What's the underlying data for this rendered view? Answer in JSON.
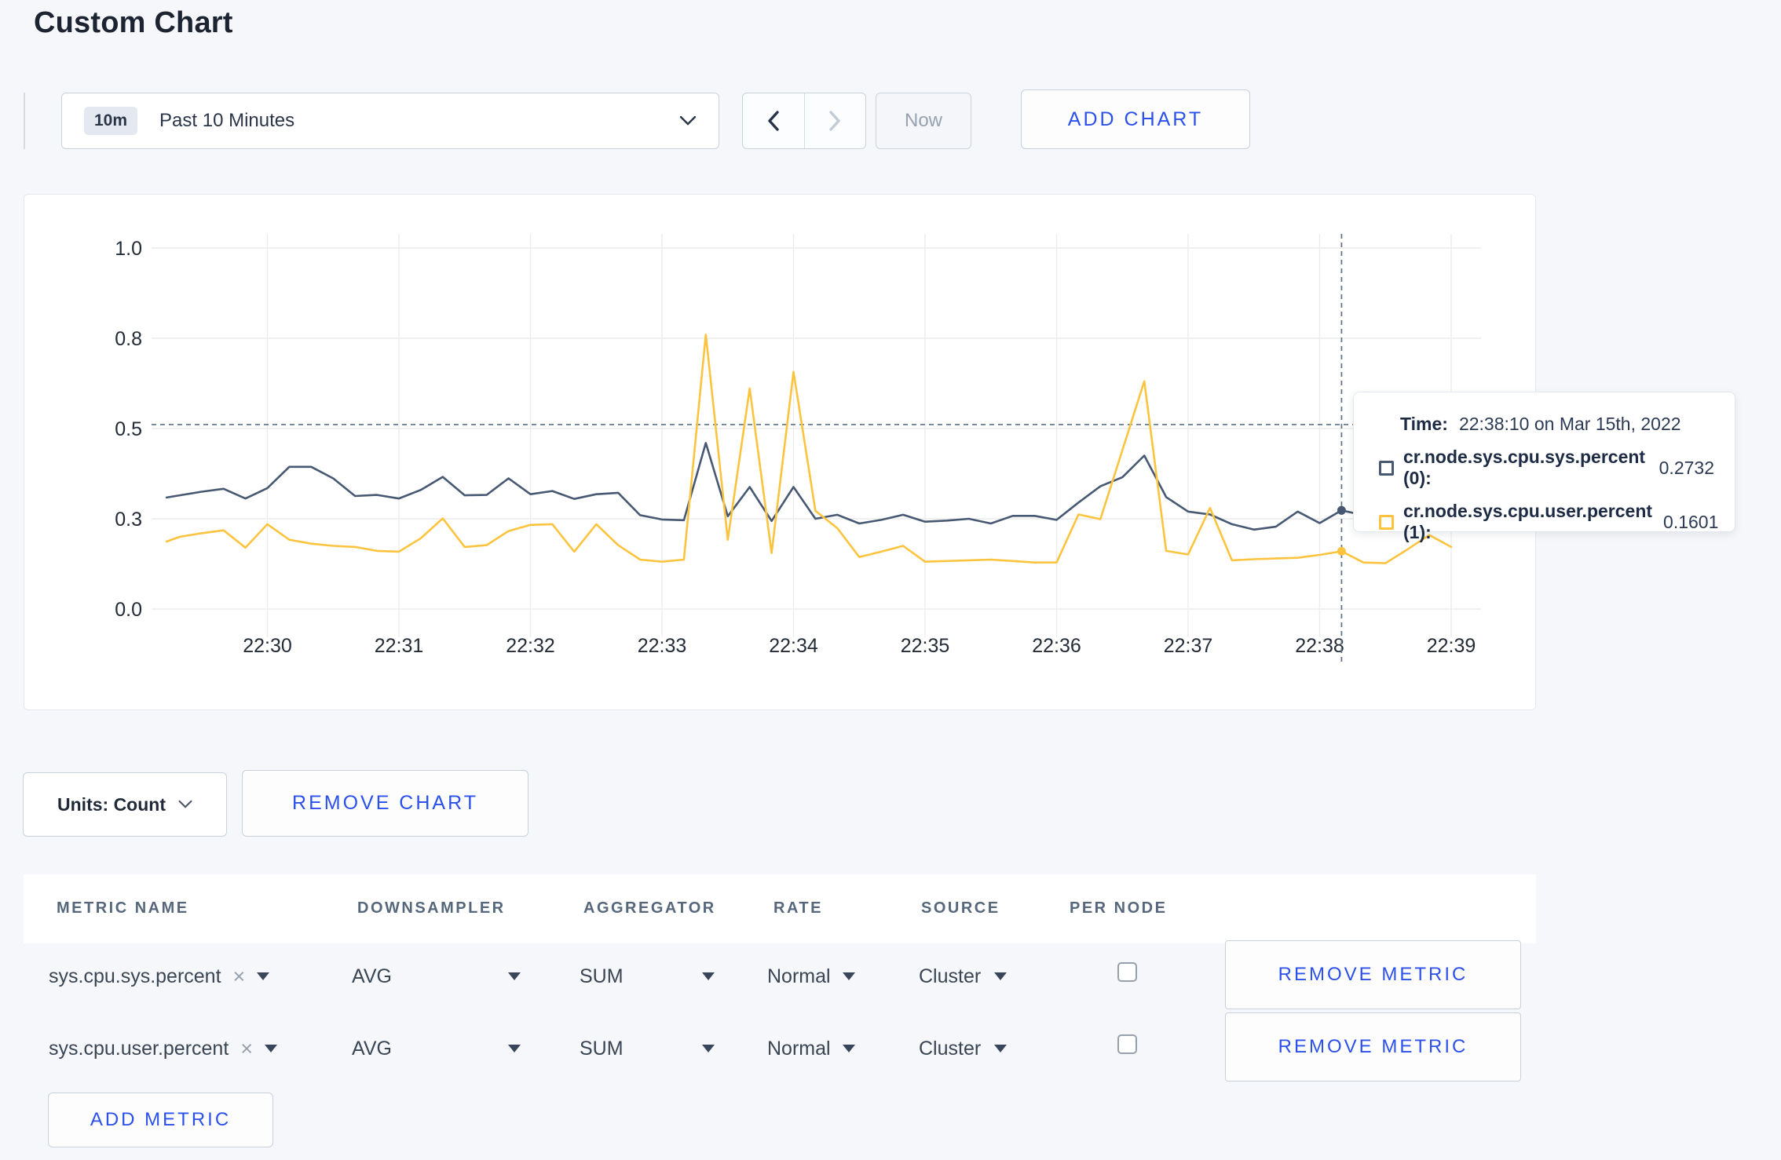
{
  "page": {
    "title": "Custom Chart",
    "background": "#f6f7fa"
  },
  "toolbar": {
    "time_window_badge": "10m",
    "time_window_label": "Past 10 Minutes",
    "now_label": "Now",
    "add_chart_label": "ADD CHART"
  },
  "tooltip": {
    "time_label": "Time:",
    "time_value": "22:38:10 on Mar 15th, 2022",
    "rows": [
      {
        "name": "cr.node.sys.cpu.sys.percent (0):",
        "value": "0.2732"
      },
      {
        "name": "cr.node.sys.cpu.user.percent (1):",
        "value": "0.1601"
      }
    ]
  },
  "chart_data": {
    "type": "line",
    "x_axis": {
      "ticks": [
        {
          "t": 0,
          "label": "22:30"
        },
        {
          "t": 60,
          "label": "22:31"
        },
        {
          "t": 120,
          "label": "22:32"
        },
        {
          "t": 180,
          "label": "22:33"
        },
        {
          "t": 240,
          "label": "22:34"
        },
        {
          "t": 300,
          "label": "22:35"
        },
        {
          "t": 360,
          "label": "22:36"
        },
        {
          "t": 420,
          "label": "22:37"
        },
        {
          "t": 480,
          "label": "22:38"
        },
        {
          "t": 540,
          "label": "22:39"
        }
      ],
      "domain_seconds_from_2230": [
        -46,
        553
      ]
    },
    "y_axis": {
      "range": [
        0,
        1
      ],
      "ticks": [
        {
          "v": 0,
          "label": "0.0"
        },
        {
          "v": 0.25,
          "label": "0.3"
        },
        {
          "v": 0.5,
          "label": "0.5"
        },
        {
          "v": 0.75,
          "label": "0.8"
        },
        {
          "v": 1,
          "label": "1.0"
        }
      ]
    },
    "crosshair": {
      "t": 490,
      "time": "22:38:10",
      "y_value": 0.511
    },
    "series": [
      {
        "name": "cr.node.sys.cpu.sys.percent",
        "color": "#475872",
        "points": [
          [
            -46,
            0.309
          ],
          [
            -40,
            0.315
          ],
          [
            -30,
            0.325
          ],
          [
            -20,
            0.333
          ],
          [
            -10,
            0.306
          ],
          [
            0,
            0.335
          ],
          [
            10,
            0.394
          ],
          [
            20,
            0.394
          ],
          [
            30,
            0.362
          ],
          [
            40,
            0.313
          ],
          [
            50,
            0.316
          ],
          [
            60,
            0.306
          ],
          [
            70,
            0.33
          ],
          [
            80,
            0.366
          ],
          [
            90,
            0.315
          ],
          [
            100,
            0.316
          ],
          [
            110,
            0.362
          ],
          [
            120,
            0.318
          ],
          [
            130,
            0.327
          ],
          [
            140,
            0.305
          ],
          [
            150,
            0.318
          ],
          [
            160,
            0.322
          ],
          [
            170,
            0.26
          ],
          [
            180,
            0.248
          ],
          [
            190,
            0.246
          ],
          [
            200,
            0.46
          ],
          [
            210,
            0.257
          ],
          [
            220,
            0.338
          ],
          [
            230,
            0.244
          ],
          [
            240,
            0.338
          ],
          [
            250,
            0.25
          ],
          [
            260,
            0.261
          ],
          [
            270,
            0.237
          ],
          [
            280,
            0.247
          ],
          [
            290,
            0.261
          ],
          [
            300,
            0.242
          ],
          [
            310,
            0.245
          ],
          [
            320,
            0.25
          ],
          [
            330,
            0.237
          ],
          [
            340,
            0.258
          ],
          [
            350,
            0.258
          ],
          [
            360,
            0.247
          ],
          [
            370,
            0.295
          ],
          [
            380,
            0.34
          ],
          [
            390,
            0.365
          ],
          [
            400,
            0.425
          ],
          [
            410,
            0.31
          ],
          [
            420,
            0.27
          ],
          [
            430,
            0.262
          ],
          [
            440,
            0.235
          ],
          [
            450,
            0.22
          ],
          [
            460,
            0.228
          ],
          [
            470,
            0.27
          ],
          [
            480,
            0.238
          ],
          [
            490,
            0.2732
          ],
          [
            500,
            0.26
          ],
          [
            510,
            0.27
          ],
          [
            520,
            0.28
          ],
          [
            530,
            0.27
          ],
          [
            540,
            0.3
          ]
        ]
      },
      {
        "name": "cr.node.sys.cpu.user.percent",
        "color": "#fcc43e",
        "points": [
          [
            -46,
            0.187
          ],
          [
            -40,
            0.2
          ],
          [
            -30,
            0.21
          ],
          [
            -20,
            0.218
          ],
          [
            -10,
            0.17
          ],
          [
            0,
            0.235
          ],
          [
            10,
            0.192
          ],
          [
            20,
            0.181
          ],
          [
            30,
            0.175
          ],
          [
            40,
            0.172
          ],
          [
            50,
            0.161
          ],
          [
            60,
            0.159
          ],
          [
            70,
            0.196
          ],
          [
            80,
            0.251
          ],
          [
            90,
            0.172
          ],
          [
            100,
            0.177
          ],
          [
            110,
            0.216
          ],
          [
            120,
            0.233
          ],
          [
            130,
            0.235
          ],
          [
            140,
            0.159
          ],
          [
            150,
            0.235
          ],
          [
            160,
            0.177
          ],
          [
            170,
            0.137
          ],
          [
            180,
            0.131
          ],
          [
            190,
            0.137
          ],
          [
            200,
            0.76
          ],
          [
            210,
            0.192
          ],
          [
            220,
            0.611
          ],
          [
            230,
            0.155
          ],
          [
            240,
            0.657
          ],
          [
            250,
            0.272
          ],
          [
            260,
            0.224
          ],
          [
            270,
            0.144
          ],
          [
            280,
            0.159
          ],
          [
            290,
            0.175
          ],
          [
            300,
            0.131
          ],
          [
            310,
            0.133
          ],
          [
            320,
            0.135
          ],
          [
            330,
            0.137
          ],
          [
            340,
            0.133
          ],
          [
            350,
            0.129
          ],
          [
            360,
            0.129
          ],
          [
            370,
            0.262
          ],
          [
            380,
            0.249
          ],
          [
            390,
            0.44
          ],
          [
            400,
            0.631
          ],
          [
            410,
            0.161
          ],
          [
            420,
            0.151
          ],
          [
            430,
            0.28
          ],
          [
            440,
            0.135
          ],
          [
            450,
            0.138
          ],
          [
            460,
            0.14
          ],
          [
            470,
            0.142
          ],
          [
            480,
            0.15
          ],
          [
            490,
            0.1601
          ],
          [
            500,
            0.129
          ],
          [
            510,
            0.127
          ],
          [
            520,
            0.165
          ],
          [
            530,
            0.205
          ],
          [
            540,
            0.172
          ]
        ]
      }
    ]
  },
  "units_row": {
    "units_label": "Units: Count",
    "remove_chart_label": "REMOVE CHART"
  },
  "table": {
    "headers": [
      "METRIC NAME",
      "DOWNSAMPLER",
      "AGGREGATOR",
      "RATE",
      "SOURCE",
      "PER NODE"
    ],
    "rows": [
      {
        "metric": "sys.cpu.sys.percent",
        "remove_tag": "×",
        "downsampler": "AVG",
        "aggregator": "SUM",
        "rate": "Normal",
        "source": "Cluster",
        "per_node_checked": false,
        "remove_label": "REMOVE METRIC"
      },
      {
        "metric": "sys.cpu.user.percent",
        "remove_tag": "×",
        "downsampler": "AVG",
        "aggregator": "SUM",
        "rate": "Normal",
        "source": "Cluster",
        "per_node_checked": false,
        "remove_label": "REMOVE METRIC"
      }
    ],
    "add_metric_label": "ADD METRIC"
  }
}
